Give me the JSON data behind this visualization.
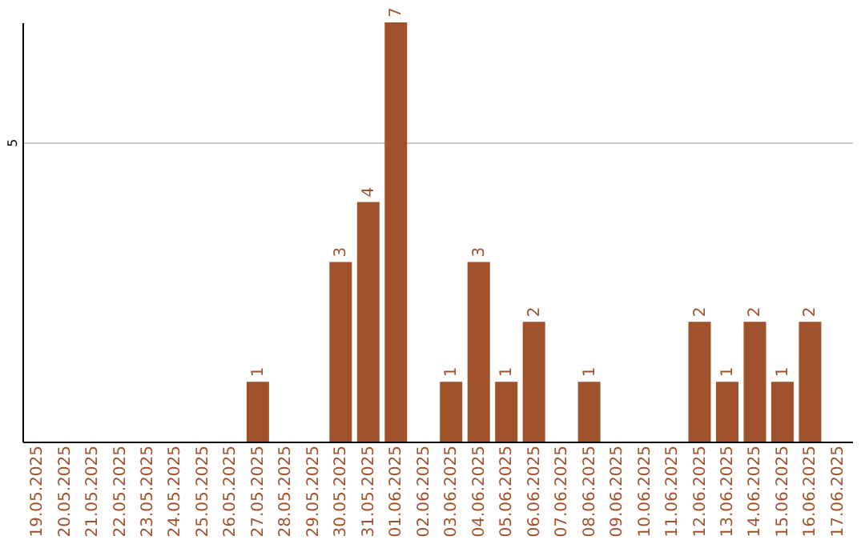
{
  "chart_data": {
    "type": "bar",
    "categories": [
      "19.05.2025",
      "20.05.2025",
      "21.05.2025",
      "22.05.2025",
      "23.05.2025",
      "24.05.2025",
      "25.05.2025",
      "26.05.2025",
      "27.05.2025",
      "28.05.2025",
      "29.05.2025",
      "30.05.2025",
      "31.05.2025",
      "01.06.2025",
      "02.06.2025",
      "03.06.2025",
      "04.06.2025",
      "05.06.2025",
      "06.06.2025",
      "07.06.2025",
      "08.06.2025",
      "09.06.2025",
      "10.06.2025",
      "11.06.2025",
      "12.06.2025",
      "13.06.2025",
      "14.06.2025",
      "15.06.2025",
      "16.06.2025",
      "17.06.2025"
    ],
    "values": [
      0,
      0,
      0,
      0,
      0,
      0,
      0,
      0,
      1,
      0,
      0,
      3,
      4,
      7,
      0,
      1,
      3,
      1,
      2,
      0,
      1,
      0,
      0,
      0,
      2,
      1,
      2,
      1,
      2,
      0
    ],
    "value_labels": [
      null,
      null,
      null,
      null,
      null,
      null,
      null,
      null,
      "1",
      null,
      null,
      "3",
      "4",
      "7",
      null,
      "1",
      "3",
      "1",
      "2",
      null,
      "1",
      null,
      null,
      null,
      "2",
      "1",
      "2",
      "1",
      "2",
      null
    ],
    "color": "#a0522d",
    "ylim": [
      0,
      7
    ],
    "yticks": [
      5
    ],
    "grid": "y"
  }
}
